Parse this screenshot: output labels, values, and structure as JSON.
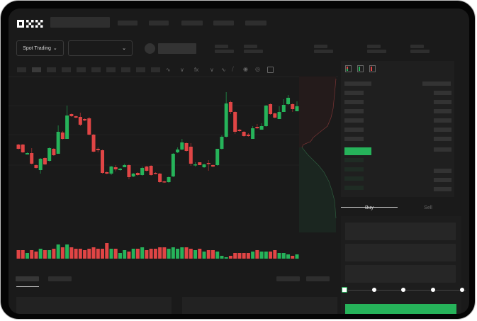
{
  "header": {
    "logo": "OKX",
    "nav_items": 5
  },
  "market": {
    "mode_label": "Spot Trading",
    "mode_icon": "chevron-down-icon",
    "pair_icon": "chevron-down-icon"
  },
  "toolbar": {
    "icons": [
      "line-style-icon",
      "indicator-icon",
      "fx-icon",
      "chevron-down-icon",
      "trend-icon",
      "ruler-icon",
      "camera-icon",
      "settings-icon",
      "fullscreen-icon"
    ]
  },
  "orderbook": {
    "view_icons": [
      "orderbook-both-icon",
      "orderbook-bids-icon",
      "orderbook-asks-icon"
    ]
  },
  "trade": {
    "tabs": [
      "Buy",
      "Sell"
    ],
    "active_tab": "Buy",
    "slider_value_percent": 0,
    "slider_steps": [
      0,
      25,
      50,
      75,
      100
    ]
  },
  "colors": {
    "up": "#26b35a",
    "down": "#e04545",
    "background": "#1a1a1a",
    "accent": "#26b35a"
  },
  "chart_data": {
    "type": "candlestick",
    "candles_ohlc": [
      [
        97,
        98,
        90,
        91
      ],
      [
        97,
        98,
        85,
        86
      ],
      [
        83,
        86,
        83,
        85
      ],
      [
        85,
        92,
        69,
        70
      ],
      [
        68,
        69,
        63,
        64
      ],
      [
        61,
        78,
        56,
        77
      ],
      [
        78,
        79,
        68,
        69
      ],
      [
        74,
        93,
        73,
        92
      ],
      [
        91,
        92,
        81,
        82
      ],
      [
        84,
        124,
        84,
        115
      ],
      [
        114,
        116,
        104,
        105
      ],
      [
        105,
        152,
        105,
        138
      ],
      [
        140,
        141,
        136,
        137
      ],
      [
        137,
        138,
        134,
        135
      ],
      [
        136,
        142,
        123,
        125
      ],
      [
        133,
        134,
        130,
        131
      ],
      [
        134,
        136,
        110,
        111
      ],
      [
        111,
        112,
        86,
        87
      ],
      [
        91,
        93,
        86,
        89
      ],
      [
        89,
        90,
        56,
        57
      ],
      [
        58,
        59,
        55,
        56
      ],
      [
        56,
        67,
        54,
        66
      ],
      [
        65,
        68,
        59,
        62
      ],
      [
        61,
        64,
        60,
        63
      ],
      [
        65,
        70,
        65,
        68
      ],
      [
        68,
        69,
        48,
        51
      ],
      [
        52,
        57,
        51,
        56
      ],
      [
        57,
        58,
        53,
        54
      ],
      [
        54,
        66,
        53,
        64
      ],
      [
        66,
        67,
        59,
        60
      ],
      [
        67,
        68,
        53,
        54
      ],
      [
        57,
        58,
        55,
        56
      ],
      [
        56,
        57,
        43,
        44
      ],
      [
        45,
        46,
        43,
        44
      ],
      [
        44,
        52,
        43,
        51
      ],
      [
        52,
        85,
        51,
        84
      ],
      [
        86,
        93,
        85,
        90
      ],
      [
        90,
        105,
        89,
        100
      ],
      [
        99,
        100,
        87,
        88
      ],
      [
        94,
        99,
        67,
        70
      ],
      [
        68,
        72,
        66,
        69
      ],
      [
        72,
        72,
        68,
        68
      ],
      [
        65,
        70,
        64,
        69
      ],
      [
        71,
        75,
        60,
        70
      ],
      [
        68,
        69,
        65,
        66
      ],
      [
        68,
        91,
        67,
        91
      ],
      [
        91,
        110,
        90,
        108
      ],
      [
        108,
        171,
        107,
        155
      ],
      [
        157,
        159,
        140,
        143
      ],
      [
        143,
        144,
        112,
        115
      ],
      [
        118,
        119,
        115,
        116
      ],
      [
        115,
        116,
        108,
        109
      ],
      [
        111,
        113,
        108,
        109
      ],
      [
        105,
        123,
        105,
        120
      ],
      [
        122,
        126,
        119,
        120
      ],
      [
        118,
        127,
        118,
        123
      ],
      [
        123,
        153,
        122,
        152
      ],
      [
        154,
        155,
        139,
        140
      ],
      [
        141,
        142,
        134,
        135
      ],
      [
        133,
        151,
        133,
        143
      ],
      [
        143,
        161,
        143,
        153
      ],
      [
        154,
        167,
        153,
        163
      ],
      [
        154,
        155,
        143,
        147
      ],
      [
        144,
        158,
        144,
        151
      ]
    ],
    "volumes": [
      6,
      6,
      4,
      6,
      5,
      7,
      6,
      6,
      7,
      10,
      8,
      10,
      8,
      7,
      7,
      6,
      7,
      8,
      7,
      7,
      11,
      7,
      7,
      4,
      6,
      5,
      7,
      7,
      8,
      6,
      7,
      7,
      8,
      8,
      7,
      8,
      7,
      8,
      8,
      7,
      6,
      7,
      5,
      6,
      6,
      5,
      2,
      1,
      2,
      4,
      4,
      4,
      4,
      5,
      6,
      5,
      5,
      5,
      6,
      4,
      4,
      3,
      2,
      3
    ],
    "ylim": [
      30,
      180
    ],
    "grid": true
  }
}
